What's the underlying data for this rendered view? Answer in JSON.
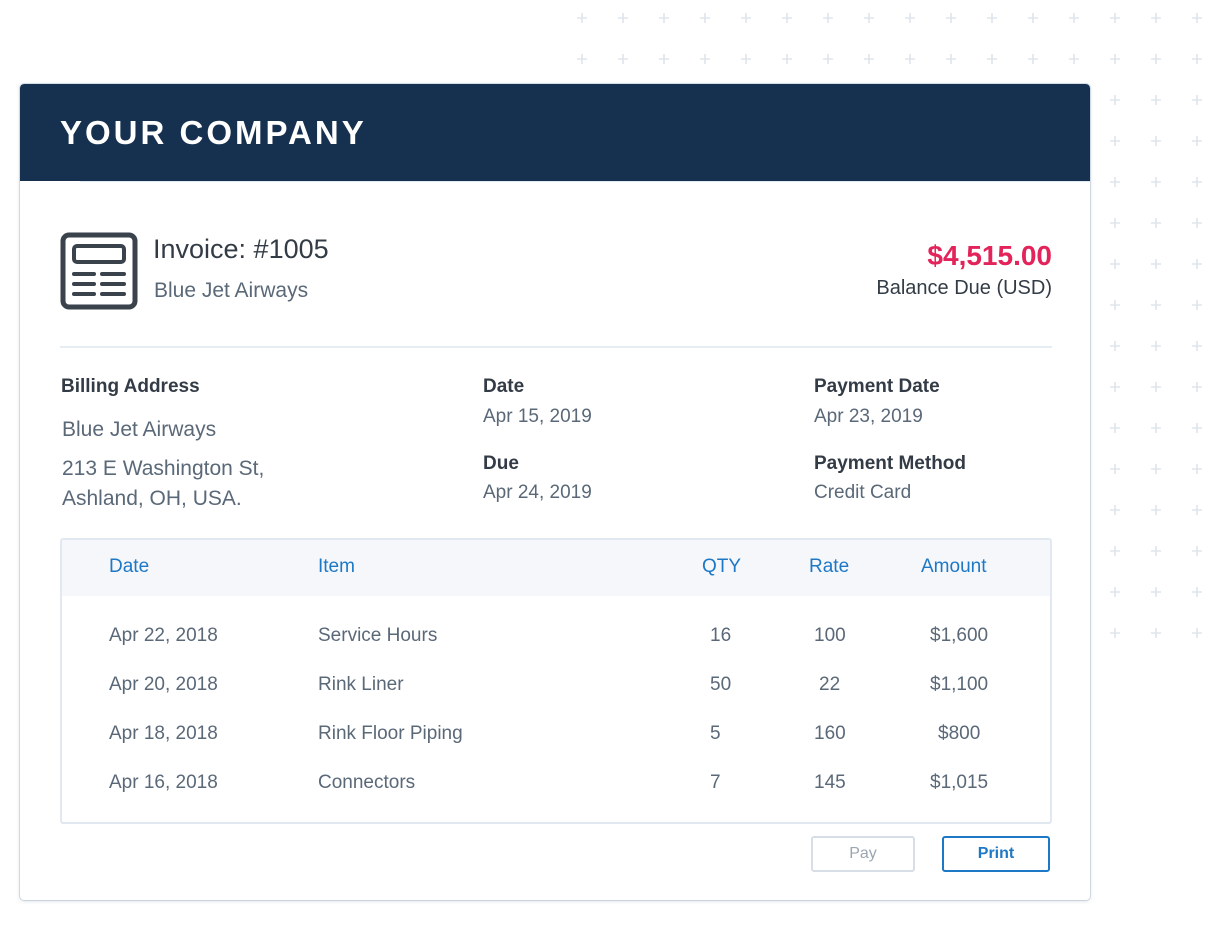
{
  "header": {
    "company": "YOUR COMPANY"
  },
  "invoice": {
    "title": "Invoice: #1005",
    "client": "Blue Jet Airways",
    "amount": "$4,515.00",
    "amount_label": "Balance Due (USD)"
  },
  "billing": {
    "label": "Billing Address",
    "name": "Blue Jet Airways",
    "street": "213 E Washington St,",
    "city": "Ashland, OH, USA."
  },
  "dates": {
    "date_label": "Date",
    "date_value": "Apr 15, 2019",
    "due_label": "Due",
    "due_value": "Apr 24, 2019"
  },
  "payment": {
    "date_label": "Payment Date",
    "date_value": "Apr 23, 2019",
    "method_label": "Payment Method",
    "method_value": "Credit Card"
  },
  "table": {
    "headers": [
      "Date",
      "Item",
      "QTY",
      "Rate",
      "Amount"
    ],
    "rows": [
      [
        "Apr 22, 2018",
        "Service Hours",
        "16",
        "100",
        "$1,600"
      ],
      [
        "Apr 20, 2018",
        "Rink Liner",
        "50",
        "22",
        "$1,100"
      ],
      [
        "Apr 18, 2018",
        "Rink Floor Piping",
        "5",
        "160",
        "$800"
      ],
      [
        "Apr 16, 2018",
        "Connectors",
        "7",
        "145",
        "$1,015"
      ]
    ]
  },
  "actions": {
    "pay": "Pay",
    "print": "Print"
  },
  "colors": {
    "header_bg": "#163050",
    "accent": "#1d78c6",
    "amount": "#e3245a"
  },
  "icons": {
    "invoice": "document-icon"
  }
}
